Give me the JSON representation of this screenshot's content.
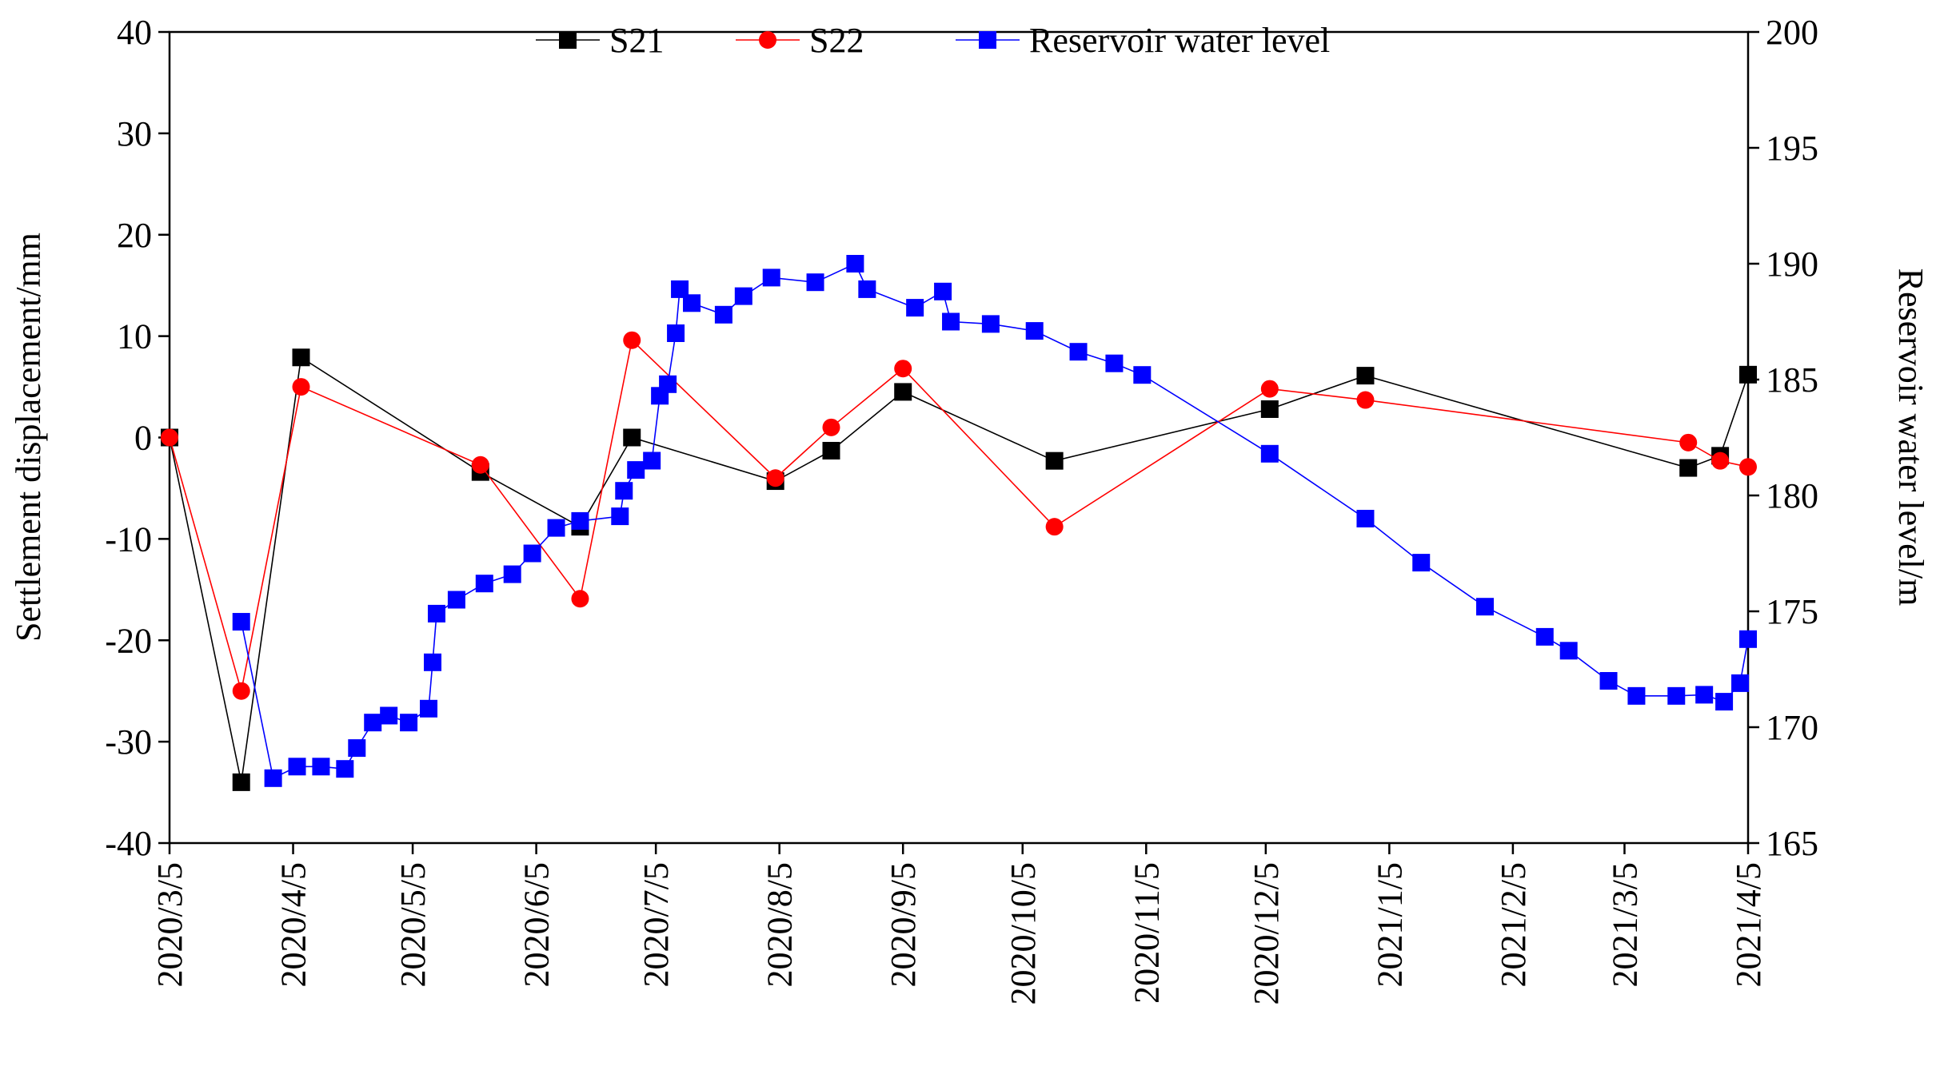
{
  "chart_data": {
    "type": "line",
    "ylabel": "Settlement displacement/mm",
    "y2label": "Reservoir water level/m",
    "xlim": [
      "2020/3/5",
      "2021/4/5"
    ],
    "xticks": [
      "2020/3/5",
      "2020/4/5",
      "2020/5/5",
      "2020/6/5",
      "2020/7/5",
      "2020/8/5",
      "2020/9/5",
      "2020/10/5",
      "2020/11/5",
      "2020/12/5",
      "2021/1/5",
      "2021/2/5",
      "2021/3/5",
      "2021/4/5"
    ],
    "ylim": [
      -40,
      40
    ],
    "yticks": [
      -40,
      -30,
      -20,
      -10,
      0,
      10,
      20,
      30,
      40
    ],
    "y2lim": [
      165,
      200
    ],
    "y2ticks": [
      165,
      170,
      175,
      180,
      185,
      190,
      195,
      200
    ],
    "legend": "top",
    "series": [
      {
        "name": "S21",
        "color": "#000000",
        "marker": "square",
        "x": [
          "2020/3/5",
          "2020/3/23",
          "2020/4/7",
          "2020/5/22",
          "2020/6/16",
          "2020/6/29",
          "2020/8/4",
          "2020/8/18",
          "2020/9/5",
          "2020/10/13",
          "2020/12/6",
          "2020/12/30",
          "2021/3/21",
          "2021/3/29",
          "2021/4/5"
        ],
        "values": [
          0,
          -34,
          7.9,
          -3.4,
          -8.8,
          0,
          -4.3,
          -1.3,
          4.5,
          -2.3,
          2.8,
          6.1,
          -3.0,
          -1.8,
          6.2
        ]
      },
      {
        "name": "S22",
        "color": "#ff0000",
        "marker": "circle",
        "x": [
          "2020/3/5",
          "2020/3/23",
          "2020/4/7",
          "2020/5/22",
          "2020/6/16",
          "2020/6/29",
          "2020/8/4",
          "2020/8/18",
          "2020/9/5",
          "2020/10/13",
          "2020/12/6",
          "2020/12/30",
          "2021/3/21",
          "2021/3/29",
          "2021/4/5"
        ],
        "values": [
          0,
          -25,
          5,
          -2.7,
          -15.9,
          9.6,
          -4,
          1,
          6.8,
          -8.8,
          4.8,
          3.7,
          -0.5,
          -2.3,
          -2.9
        ]
      },
      {
        "name": "Reservoir water level",
        "color": "#0000ff",
        "marker": "square",
        "axis": "y2",
        "x": [
          "2020/3/23",
          "2020/3/31",
          "2020/4/6",
          "2020/4/12",
          "2020/4/18",
          "2020/4/21",
          "2020/4/25",
          "2020/4/29",
          "2020/5/4",
          "2020/5/9",
          "2020/5/10",
          "2020/5/11",
          "2020/5/16",
          "2020/5/23",
          "2020/5/30",
          "2020/6/4",
          "2020/6/10",
          "2020/6/16",
          "2020/6/26",
          "2020/6/27",
          "2020/6/30",
          "2020/7/4",
          "2020/7/6",
          "2020/7/8",
          "2020/7/10",
          "2020/7/11",
          "2020/7/14",
          "2020/7/22",
          "2020/7/27",
          "2020/8/3",
          "2020/8/14",
          "2020/8/24",
          "2020/8/27",
          "2020/9/8",
          "2020/9/15",
          "2020/9/17",
          "2020/9/27",
          "2020/10/8",
          "2020/10/19",
          "2020/10/28",
          "2020/11/4",
          "2020/12/6",
          "2020/12/30",
          "2021/1/13",
          "2021/1/29",
          "2021/2/13",
          "2021/2/19",
          "2021/3/1",
          "2021/3/8",
          "2021/3/18",
          "2021/3/25",
          "2021/3/30",
          "2021/4/3",
          "2021/4/5"
        ],
        "values": [
          174.55,
          167.8,
          168.3,
          168.3,
          168.2,
          169.1,
          170.2,
          170.5,
          170.2,
          170.8,
          172.8,
          174.9,
          175.5,
          176.2,
          176.6,
          177.5,
          178.6,
          178.9,
          179.1,
          180.2,
          181.1,
          181.5,
          184.3,
          184.8,
          187.0,
          188.9,
          188.3,
          187.8,
          188.6,
          189.4,
          189.2,
          190.0,
          188.9,
          188.1,
          188.8,
          187.5,
          187.4,
          187.1,
          186.2,
          185.7,
          185.2,
          181.8,
          179.0,
          177.1,
          175.2,
          173.9,
          173.3,
          172.0,
          171.35,
          171.35,
          171.4,
          171.1,
          171.9,
          173.8
        ]
      }
    ]
  }
}
